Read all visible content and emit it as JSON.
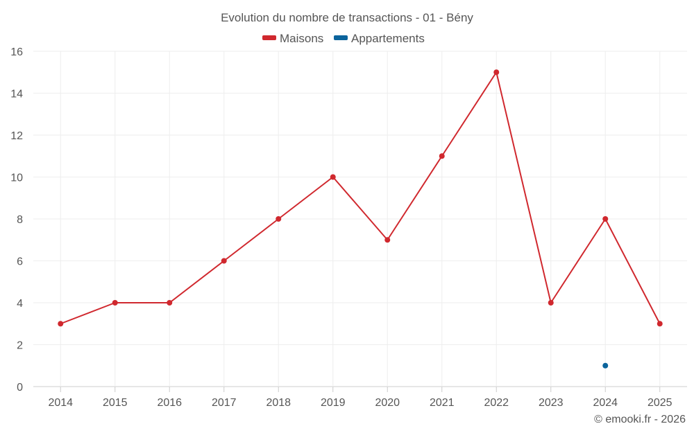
{
  "chart_data": {
    "type": "line",
    "title": "Evolution du nombre de transactions - 01 - Bény",
    "categories": [
      "2014",
      "2015",
      "2016",
      "2017",
      "2018",
      "2019",
      "2020",
      "2021",
      "2022",
      "2023",
      "2024",
      "2025"
    ],
    "series": [
      {
        "name": "Maisons",
        "color": "#d0282e",
        "values": [
          3,
          4,
          4,
          6,
          8,
          10,
          7,
          11,
          15,
          4,
          8,
          3
        ]
      },
      {
        "name": "Appartements",
        "color": "#0b649c",
        "values": [
          null,
          null,
          null,
          null,
          null,
          null,
          null,
          null,
          null,
          null,
          1,
          null
        ]
      }
    ],
    "ylim": [
      0,
      16
    ],
    "yticks": [
      0,
      2,
      4,
      6,
      8,
      10,
      12,
      14,
      16
    ],
    "xlabel": "",
    "ylabel": "",
    "grid": true,
    "legend": "top-center"
  },
  "credit": "© emooki.fr - 2026"
}
